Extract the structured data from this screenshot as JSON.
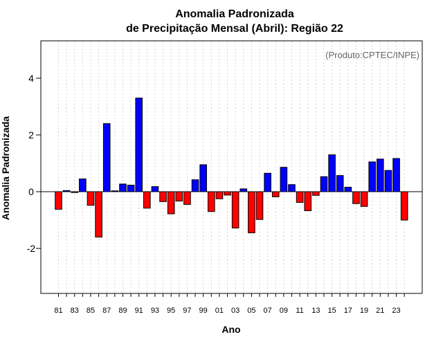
{
  "chart_data": {
    "type": "bar",
    "title_line1": "Anomalia Padronizada",
    "title_line2": "de Precipitação Mensal (Abril): Região 22",
    "xlabel": "Ano",
    "ylabel": "Anomalia Padronizada",
    "annotation": "(Produto:CPTEC/INPE)",
    "ylim": [
      -3.5,
      5.3
    ],
    "yticks": [
      -2,
      0,
      2,
      4
    ],
    "grid": true,
    "colors": {
      "positive": "#0000ff",
      "negative": "#ff0000",
      "grid": "#d3d3d3",
      "zero_line": "#000000"
    },
    "years": [
      1981,
      1982,
      1983,
      1984,
      1985,
      1986,
      1987,
      1988,
      1989,
      1990,
      1991,
      1992,
      1993,
      1994,
      1995,
      1996,
      1997,
      1998,
      1999,
      2000,
      2001,
      2002,
      2003,
      2004,
      2005,
      2006,
      2007,
      2008,
      2009,
      2010,
      2011,
      2012,
      2013,
      2014,
      2015,
      2016,
      2017,
      2018,
      2019,
      2020,
      2021,
      2022,
      2023,
      2024
    ],
    "values": [
      -0.62,
      0.04,
      -0.03,
      0.45,
      -0.48,
      -1.6,
      2.4,
      0.03,
      0.27,
      0.23,
      3.3,
      -0.58,
      0.18,
      -0.35,
      -0.78,
      -0.33,
      -0.45,
      0.42,
      0.95,
      -0.7,
      -0.25,
      -0.12,
      -1.28,
      0.1,
      -1.45,
      -0.98,
      0.65,
      -0.18,
      0.86,
      0.25,
      -0.38,
      -0.67,
      -0.13,
      0.53,
      1.3,
      0.57,
      0.16,
      -0.42,
      -0.52,
      1.05,
      1.15,
      0.75,
      1.17,
      -1.0
    ],
    "xtick_labels": [
      "81",
      "83",
      "85",
      "87",
      "89",
      "91",
      "93",
      "95",
      "97",
      "99",
      "01",
      "03",
      "05",
      "07",
      "09",
      "11",
      "13",
      "15",
      "17",
      "19",
      "21",
      "23"
    ]
  }
}
